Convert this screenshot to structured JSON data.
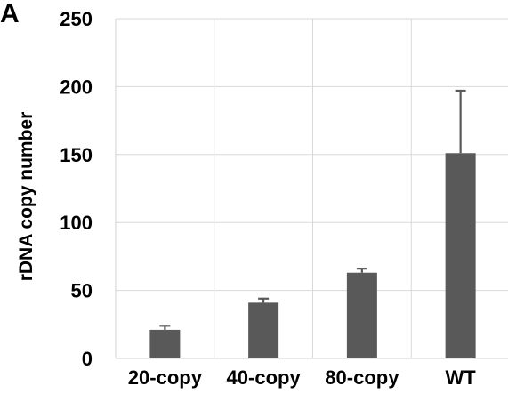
{
  "panel_label": "A",
  "chart_data": {
    "type": "bar",
    "categories": [
      "20-copy",
      "40-copy",
      "80-copy",
      "WT"
    ],
    "values": [
      21,
      41,
      63,
      151
    ],
    "error_plus": [
      3,
      3,
      3,
      46
    ],
    "xlabel": "",
    "ylabel": "rDNA copy number",
    "ylim": [
      0,
      250
    ],
    "yticks": [
      0,
      50,
      100,
      150,
      200,
      250
    ],
    "grid": true,
    "bar_color": "#595959",
    "grid_color": "#d9d9d9"
  }
}
